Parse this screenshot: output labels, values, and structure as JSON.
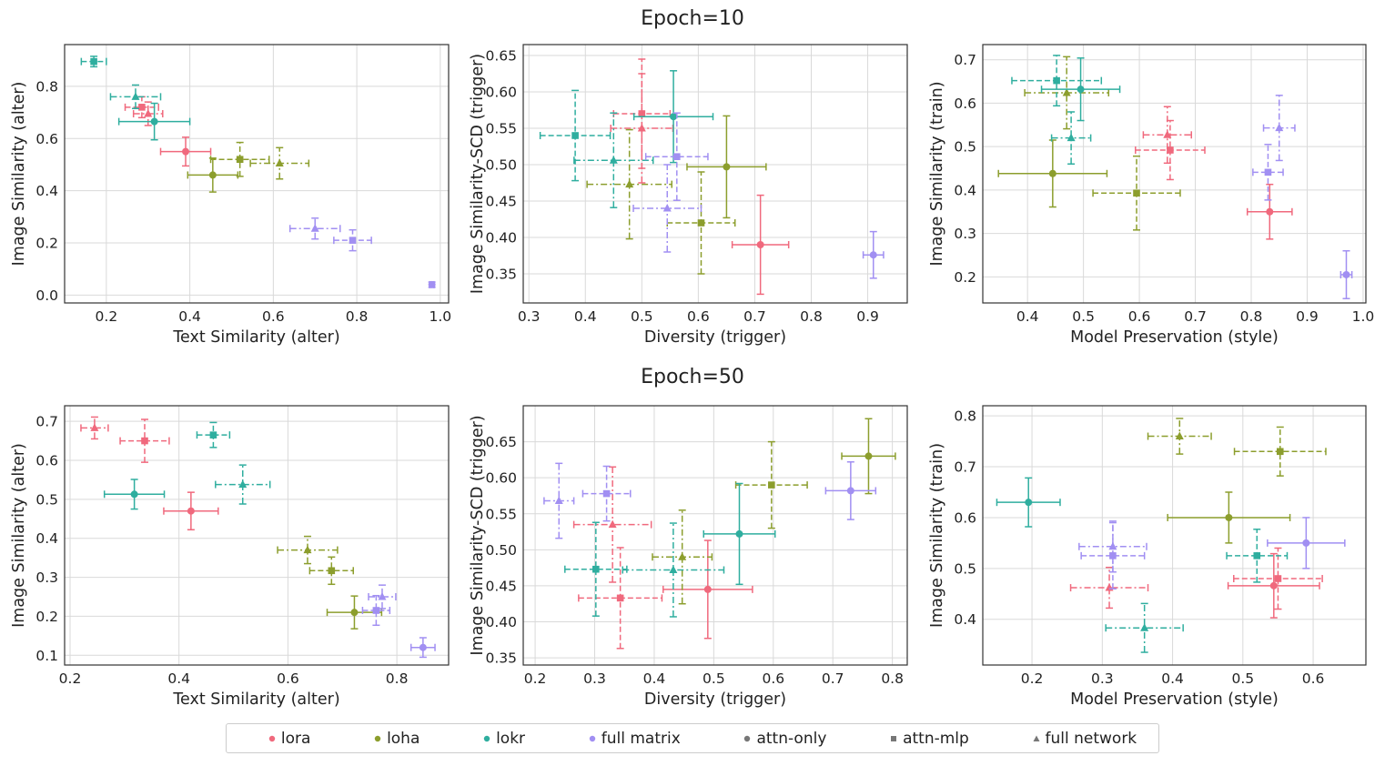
{
  "row_titles": [
    "Epoch=10",
    "Epoch=50"
  ],
  "colors": {
    "lora": "#f0697d",
    "loha": "#8c9e2d",
    "lokr": "#2fae9f",
    "full matrix": "#a18ff2",
    "neutral": "#777777"
  },
  "legend": [
    {
      "label": "lora",
      "kind": "color",
      "key": "lora"
    },
    {
      "label": "loha",
      "kind": "color",
      "key": "loha"
    },
    {
      "label": "lokr",
      "kind": "color",
      "key": "lokr"
    },
    {
      "label": "full matrix",
      "kind": "color",
      "key": "full matrix"
    },
    {
      "label": "attn-only",
      "kind": "marker",
      "marker": "circle"
    },
    {
      "label": "attn-mlp",
      "kind": "marker",
      "marker": "square"
    },
    {
      "label": "full network",
      "kind": "marker",
      "marker": "triangle"
    }
  ],
  "chart_data": [
    {
      "type": "scatter",
      "row": 0,
      "col": 0,
      "xlabel": "Text Similarity (alter)",
      "ylabel": "Image Similarity (alter)",
      "xlim": [
        0.1,
        1.02
      ],
      "ylim": [
        -0.03,
        0.96
      ],
      "xticks": [
        0.2,
        0.4,
        0.6,
        0.8,
        1.0
      ],
      "xtick_labels": [
        "0.2",
        "0.4",
        "0.6",
        "0.8",
        "1.0"
      ],
      "yticks": [
        0.0,
        0.2,
        0.4,
        0.6,
        0.8
      ],
      "ytick_labels": [
        "0.0",
        "0.2",
        "0.4",
        "0.6",
        "0.8"
      ],
      "points": [
        {
          "algo": "lora",
          "marker": "circle",
          "x": 0.39,
          "y": 0.55,
          "xerr": 0.06,
          "yerr": 0.055
        },
        {
          "algo": "lora",
          "marker": "square",
          "x": 0.285,
          "y": 0.72,
          "xerr": 0.04,
          "yerr": 0.04
        },
        {
          "algo": "lora",
          "marker": "triangle",
          "x": 0.3,
          "y": 0.695,
          "xerr": 0.035,
          "yerr": 0.045
        },
        {
          "algo": "loha",
          "marker": "circle",
          "x": 0.455,
          "y": 0.46,
          "xerr": 0.06,
          "yerr": 0.065
        },
        {
          "algo": "loha",
          "marker": "square",
          "x": 0.52,
          "y": 0.52,
          "xerr": 0.07,
          "yerr": 0.065
        },
        {
          "algo": "loha",
          "marker": "triangle",
          "x": 0.615,
          "y": 0.505,
          "xerr": 0.07,
          "yerr": 0.06
        },
        {
          "algo": "lokr",
          "marker": "circle",
          "x": 0.315,
          "y": 0.665,
          "xerr": 0.085,
          "yerr": 0.07
        },
        {
          "algo": "lokr",
          "marker": "square",
          "x": 0.17,
          "y": 0.895,
          "xerr": 0.03,
          "yerr": 0.02
        },
        {
          "algo": "lokr",
          "marker": "triangle",
          "x": 0.27,
          "y": 0.76,
          "xerr": 0.06,
          "yerr": 0.045
        },
        {
          "algo": "full matrix",
          "marker": "circle",
          "x": 0.98,
          "y": 0.04,
          "xerr": 0.005,
          "yerr": 0.01
        },
        {
          "algo": "full matrix",
          "marker": "square",
          "x": 0.79,
          "y": 0.21,
          "xerr": 0.045,
          "yerr": 0.04
        },
        {
          "algo": "full matrix",
          "marker": "triangle",
          "x": 0.7,
          "y": 0.255,
          "xerr": 0.06,
          "yerr": 0.04
        }
      ]
    },
    {
      "type": "scatter",
      "row": 0,
      "col": 1,
      "xlabel": "Diversity (trigger)",
      "ylabel": "Image Similarity-SCD (trigger)",
      "xlim": [
        0.29,
        0.97
      ],
      "ylim": [
        0.31,
        0.665
      ],
      "xticks": [
        0.3,
        0.4,
        0.5,
        0.6,
        0.7,
        0.8,
        0.9
      ],
      "xtick_labels": [
        "0.3",
        "0.4",
        "0.5",
        "0.6",
        "0.7",
        "0.8",
        "0.9"
      ],
      "yticks": [
        0.35,
        0.4,
        0.45,
        0.5,
        0.55,
        0.6,
        0.65
      ],
      "ytick_labels": [
        "0.35",
        "0.40",
        "0.45",
        "0.50",
        "0.55",
        "0.60",
        "0.65"
      ],
      "points": [
        {
          "algo": "lora",
          "marker": "circle",
          "x": 0.71,
          "y": 0.39,
          "xerr": 0.05,
          "yerr": 0.068
        },
        {
          "algo": "lora",
          "marker": "square",
          "x": 0.5,
          "y": 0.57,
          "xerr": 0.05,
          "yerr": 0.075
        },
        {
          "algo": "lora",
          "marker": "triangle",
          "x": 0.5,
          "y": 0.55,
          "xerr": 0.055,
          "yerr": 0.075
        },
        {
          "algo": "loha",
          "marker": "circle",
          "x": 0.65,
          "y": 0.497,
          "xerr": 0.07,
          "yerr": 0.07
        },
        {
          "algo": "loha",
          "marker": "square",
          "x": 0.605,
          "y": 0.42,
          "xerr": 0.06,
          "yerr": 0.07
        },
        {
          "algo": "loha",
          "marker": "triangle",
          "x": 0.478,
          "y": 0.473,
          "xerr": 0.075,
          "yerr": 0.075
        },
        {
          "algo": "lokr",
          "marker": "circle",
          "x": 0.556,
          "y": 0.566,
          "xerr": 0.07,
          "yerr": 0.063
        },
        {
          "algo": "lokr",
          "marker": "square",
          "x": 0.382,
          "y": 0.54,
          "xerr": 0.062,
          "yerr": 0.062
        },
        {
          "algo": "lokr",
          "marker": "triangle",
          "x": 0.45,
          "y": 0.506,
          "xerr": 0.07,
          "yerr": 0.065
        },
        {
          "algo": "full matrix",
          "marker": "circle",
          "x": 0.91,
          "y": 0.376,
          "xerr": 0.018,
          "yerr": 0.032
        },
        {
          "algo": "full matrix",
          "marker": "square",
          "x": 0.562,
          "y": 0.511,
          "xerr": 0.055,
          "yerr": 0.06
        },
        {
          "algo": "full matrix",
          "marker": "triangle",
          "x": 0.545,
          "y": 0.44,
          "xerr": 0.06,
          "yerr": 0.06
        }
      ]
    },
    {
      "type": "scatter",
      "row": 0,
      "col": 2,
      "xlabel": "Model Preservation (style)",
      "ylabel": "Image Similarity (train)",
      "xlim": [
        0.32,
        1.005
      ],
      "ylim": [
        0.14,
        0.735
      ],
      "xticks": [
        0.4,
        0.5,
        0.6,
        0.7,
        0.8,
        0.9,
        1.0
      ],
      "xtick_labels": [
        "0.4",
        "0.5",
        "0.6",
        "0.7",
        "0.8",
        "0.9",
        "1.0"
      ],
      "yticks": [
        0.2,
        0.3,
        0.4,
        0.5,
        0.6,
        0.7
      ],
      "ytick_labels": [
        "0.2",
        "0.3",
        "0.4",
        "0.5",
        "0.6",
        "0.7"
      ],
      "points": [
        {
          "algo": "lora",
          "marker": "circle",
          "x": 0.833,
          "y": 0.35,
          "xerr": 0.04,
          "yerr": 0.063
        },
        {
          "algo": "lora",
          "marker": "square",
          "x": 0.655,
          "y": 0.492,
          "xerr": 0.062,
          "yerr": 0.068
        },
        {
          "algo": "lora",
          "marker": "triangle",
          "x": 0.65,
          "y": 0.527,
          "xerr": 0.043,
          "yerr": 0.065
        },
        {
          "algo": "loha",
          "marker": "circle",
          "x": 0.445,
          "y": 0.438,
          "xerr": 0.097,
          "yerr": 0.077
        },
        {
          "algo": "loha",
          "marker": "square",
          "x": 0.595,
          "y": 0.393,
          "xerr": 0.078,
          "yerr": 0.085
        },
        {
          "algo": "loha",
          "marker": "triangle",
          "x": 0.47,
          "y": 0.624,
          "xerr": 0.075,
          "yerr": 0.083
        },
        {
          "algo": "lokr",
          "marker": "circle",
          "x": 0.495,
          "y": 0.632,
          "xerr": 0.07,
          "yerr": 0.072
        },
        {
          "algo": "lokr",
          "marker": "square",
          "x": 0.452,
          "y": 0.652,
          "xerr": 0.08,
          "yerr": 0.058
        },
        {
          "algo": "lokr",
          "marker": "triangle",
          "x": 0.478,
          "y": 0.52,
          "xerr": 0.035,
          "yerr": 0.06
        },
        {
          "algo": "full matrix",
          "marker": "circle",
          "x": 0.97,
          "y": 0.205,
          "xerr": 0.01,
          "yerr": 0.055
        },
        {
          "algo": "full matrix",
          "marker": "square",
          "x": 0.83,
          "y": 0.441,
          "xerr": 0.027,
          "yerr": 0.064
        },
        {
          "algo": "full matrix",
          "marker": "triangle",
          "x": 0.85,
          "y": 0.543,
          "xerr": 0.028,
          "yerr": 0.075
        }
      ]
    },
    {
      "type": "scatter",
      "row": 1,
      "col": 0,
      "xlabel": "Text Similarity (alter)",
      "ylabel": "Image Similarity (alter)",
      "xlim": [
        0.19,
        0.895
      ],
      "ylim": [
        0.075,
        0.74
      ],
      "xticks": [
        0.2,
        0.4,
        0.6,
        0.8
      ],
      "xtick_labels": [
        "0.2",
        "0.4",
        "0.6",
        "0.8"
      ],
      "yticks": [
        0.1,
        0.2,
        0.3,
        0.4,
        0.5,
        0.6,
        0.7
      ],
      "ytick_labels": [
        "0.1",
        "0.2",
        "0.3",
        "0.4",
        "0.5",
        "0.6",
        "0.7"
      ],
      "points": [
        {
          "algo": "lora",
          "marker": "circle",
          "x": 0.422,
          "y": 0.47,
          "xerr": 0.05,
          "yerr": 0.048
        },
        {
          "algo": "lora",
          "marker": "square",
          "x": 0.337,
          "y": 0.65,
          "xerr": 0.045,
          "yerr": 0.055
        },
        {
          "algo": "lora",
          "marker": "triangle",
          "x": 0.245,
          "y": 0.683,
          "xerr": 0.025,
          "yerr": 0.028
        },
        {
          "algo": "loha",
          "marker": "circle",
          "x": 0.722,
          "y": 0.21,
          "xerr": 0.05,
          "yerr": 0.042
        },
        {
          "algo": "loha",
          "marker": "square",
          "x": 0.68,
          "y": 0.317,
          "xerr": 0.04,
          "yerr": 0.035
        },
        {
          "algo": "loha",
          "marker": "triangle",
          "x": 0.636,
          "y": 0.37,
          "xerr": 0.055,
          "yerr": 0.035
        },
        {
          "algo": "lokr",
          "marker": "circle",
          "x": 0.318,
          "y": 0.513,
          "xerr": 0.055,
          "yerr": 0.038
        },
        {
          "algo": "lokr",
          "marker": "square",
          "x": 0.463,
          "y": 0.665,
          "xerr": 0.03,
          "yerr": 0.032
        },
        {
          "algo": "lokr",
          "marker": "triangle",
          "x": 0.517,
          "y": 0.538,
          "xerr": 0.05,
          "yerr": 0.05
        },
        {
          "algo": "full matrix",
          "marker": "circle",
          "x": 0.848,
          "y": 0.12,
          "xerr": 0.022,
          "yerr": 0.025
        },
        {
          "algo": "full matrix",
          "marker": "square",
          "x": 0.762,
          "y": 0.215,
          "xerr": 0.025,
          "yerr": 0.038
        },
        {
          "algo": "full matrix",
          "marker": "triangle",
          "x": 0.773,
          "y": 0.25,
          "xerr": 0.025,
          "yerr": 0.03
        }
      ]
    },
    {
      "type": "scatter",
      "row": 1,
      "col": 1,
      "xlabel": "Diversity (trigger)",
      "ylabel": "Image Similarity-SCD (trigger)",
      "xlim": [
        0.18,
        0.825
      ],
      "ylim": [
        0.34,
        0.7
      ],
      "xticks": [
        0.2,
        0.3,
        0.4,
        0.5,
        0.6,
        0.7,
        0.8
      ],
      "xtick_labels": [
        "0.2",
        "0.3",
        "0.4",
        "0.5",
        "0.6",
        "0.7",
        "0.8"
      ],
      "yticks": [
        0.35,
        0.4,
        0.45,
        0.5,
        0.55,
        0.6,
        0.65
      ],
      "ytick_labels": [
        "0.35",
        "0.40",
        "0.45",
        "0.50",
        "0.55",
        "0.60",
        "0.65"
      ],
      "points": [
        {
          "algo": "lora",
          "marker": "circle",
          "x": 0.49,
          "y": 0.445,
          "xerr": 0.075,
          "yerr": 0.068
        },
        {
          "algo": "lora",
          "marker": "square",
          "x": 0.343,
          "y": 0.433,
          "xerr": 0.07,
          "yerr": 0.07
        },
        {
          "algo": "lora",
          "marker": "triangle",
          "x": 0.33,
          "y": 0.535,
          "xerr": 0.065,
          "yerr": 0.08
        },
        {
          "algo": "loha",
          "marker": "circle",
          "x": 0.76,
          "y": 0.63,
          "xerr": 0.045,
          "yerr": 0.052
        },
        {
          "algo": "loha",
          "marker": "square",
          "x": 0.597,
          "y": 0.59,
          "xerr": 0.06,
          "yerr": 0.06
        },
        {
          "algo": "loha",
          "marker": "triangle",
          "x": 0.447,
          "y": 0.49,
          "xerr": 0.05,
          "yerr": 0.065
        },
        {
          "algo": "lokr",
          "marker": "circle",
          "x": 0.543,
          "y": 0.522,
          "xerr": 0.06,
          "yerr": 0.07
        },
        {
          "algo": "lokr",
          "marker": "square",
          "x": 0.302,
          "y": 0.473,
          "xerr": 0.052,
          "yerr": 0.065
        },
        {
          "algo": "lokr",
          "marker": "triangle",
          "x": 0.432,
          "y": 0.472,
          "xerr": 0.085,
          "yerr": 0.065
        },
        {
          "algo": "full matrix",
          "marker": "circle",
          "x": 0.73,
          "y": 0.582,
          "xerr": 0.042,
          "yerr": 0.04
        },
        {
          "algo": "full matrix",
          "marker": "square",
          "x": 0.32,
          "y": 0.578,
          "xerr": 0.04,
          "yerr": 0.038
        },
        {
          "algo": "full matrix",
          "marker": "triangle",
          "x": 0.24,
          "y": 0.568,
          "xerr": 0.025,
          "yerr": 0.052
        }
      ]
    },
    {
      "type": "scatter",
      "row": 1,
      "col": 2,
      "xlabel": "Model Preservation (style)",
      "ylabel": "Image Similarity (train)",
      "xlim": [
        0.13,
        0.675
      ],
      "ylim": [
        0.31,
        0.82
      ],
      "xticks": [
        0.2,
        0.3,
        0.4,
        0.5,
        0.6
      ],
      "xtick_labels": [
        "0.2",
        "0.3",
        "0.4",
        "0.5",
        "0.6"
      ],
      "yticks": [
        0.4,
        0.5,
        0.6,
        0.7,
        0.8
      ],
      "ytick_labels": [
        "0.4",
        "0.5",
        "0.6",
        "0.7",
        "0.8"
      ],
      "points": [
        {
          "algo": "lora",
          "marker": "circle",
          "x": 0.544,
          "y": 0.466,
          "xerr": 0.065,
          "yerr": 0.063
        },
        {
          "algo": "lora",
          "marker": "square",
          "x": 0.55,
          "y": 0.48,
          "xerr": 0.063,
          "yerr": 0.06
        },
        {
          "algo": "lora",
          "marker": "triangle",
          "x": 0.31,
          "y": 0.462,
          "xerr": 0.055,
          "yerr": 0.04
        },
        {
          "algo": "loha",
          "marker": "circle",
          "x": 0.48,
          "y": 0.6,
          "xerr": 0.087,
          "yerr": 0.05
        },
        {
          "algo": "loha",
          "marker": "square",
          "x": 0.553,
          "y": 0.73,
          "xerr": 0.065,
          "yerr": 0.048
        },
        {
          "algo": "loha",
          "marker": "triangle",
          "x": 0.41,
          "y": 0.76,
          "xerr": 0.045,
          "yerr": 0.035
        },
        {
          "algo": "lokr",
          "marker": "circle",
          "x": 0.195,
          "y": 0.63,
          "xerr": 0.045,
          "yerr": 0.048
        },
        {
          "algo": "lokr",
          "marker": "square",
          "x": 0.52,
          "y": 0.525,
          "xerr": 0.043,
          "yerr": 0.052
        },
        {
          "algo": "lokr",
          "marker": "triangle",
          "x": 0.36,
          "y": 0.383,
          "xerr": 0.055,
          "yerr": 0.048
        },
        {
          "algo": "full matrix",
          "marker": "circle",
          "x": 0.59,
          "y": 0.55,
          "xerr": 0.055,
          "yerr": 0.05
        },
        {
          "algo": "full matrix",
          "marker": "square",
          "x": 0.315,
          "y": 0.525,
          "xerr": 0.045,
          "yerr": 0.065
        },
        {
          "algo": "full matrix",
          "marker": "triangle",
          "x": 0.315,
          "y": 0.543,
          "xerr": 0.048,
          "yerr": 0.05
        }
      ]
    }
  ]
}
